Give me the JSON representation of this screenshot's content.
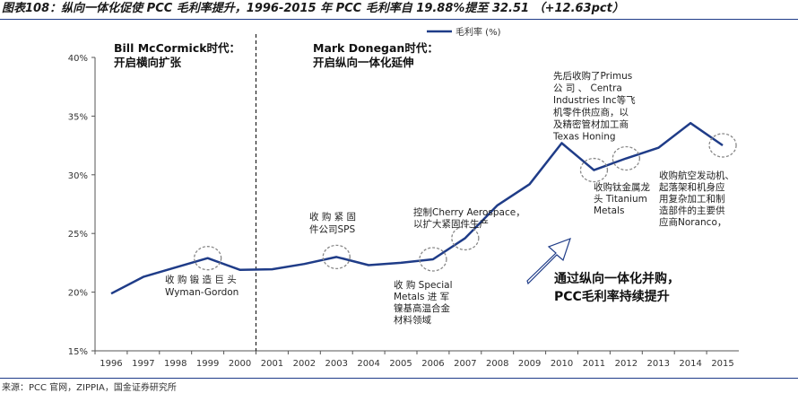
{
  "title": "图表108：纵向一体化促使 PCC 毛利率提升，1996-2015 年 PCC 毛利率自 19.88%提至 32.51 （+12.63pct）",
  "source": "来源：PCC 官网，ZIPPIA，国金证券研究所",
  "colors": {
    "line": "#1f3c88",
    "marker": "#888888",
    "arrow": "#1f3c88"
  },
  "chart_data": {
    "type": "line",
    "title": "",
    "xlabel": "",
    "ylabel": "",
    "categories": [
      "1996",
      "1997",
      "1998",
      "1999",
      "2000",
      "2001",
      "2002",
      "2003",
      "2004",
      "2005",
      "2006",
      "2007",
      "2008",
      "2009",
      "2010",
      "2011",
      "2012",
      "2013",
      "2014",
      "2015"
    ],
    "series": [
      {
        "name": "毛利率 (%)",
        "values": [
          19.88,
          21.3,
          22.1,
          22.9,
          21.9,
          21.95,
          22.4,
          23.0,
          22.3,
          22.5,
          22.8,
          24.6,
          27.4,
          29.2,
          32.7,
          30.4,
          31.4,
          32.3,
          34.4,
          32.51
        ]
      }
    ],
    "ylim": [
      15,
      40
    ],
    "yticks": [
      15,
      20,
      25,
      30,
      35,
      40
    ],
    "ytick_labels": [
      "15%",
      "20%",
      "25%",
      "30%",
      "35%",
      "40%"
    ],
    "legend": {
      "label": "毛利率 (%)",
      "position": "top-center"
    },
    "grid": false,
    "divider_after": "2000",
    "eras": [
      {
        "lines": [
          "Bill McCormick时代：",
          "开启横向扩张"
        ]
      },
      {
        "lines": [
          "Mark Donegan时代：",
          "开启纵向一体化延伸"
        ]
      }
    ],
    "highlights": [
      "1999",
      "2003",
      "2006",
      "2007",
      "2011",
      "2012",
      "2015"
    ],
    "annotations": [
      {
        "year": "1999",
        "lines": [
          "收 购 锻 造 巨 头",
          "Wyman-Gordon"
        ]
      },
      {
        "year": "2003",
        "lines": [
          "收 购 紧 固",
          "件公司SPS"
        ]
      },
      {
        "year": "2006",
        "lines": [
          "收 购 Special",
          "Metals 进 军",
          "镍基高温合金",
          "材料领域"
        ]
      },
      {
        "year": "2007",
        "lines": [
          "控制Cherry  Aerospace，",
          "以扩大紧固件生产"
        ]
      },
      {
        "year": "2010",
        "lines": [
          "先后收购了Primus",
          "公   司   、   Centra",
          "Industries  Inc等飞",
          "机零件供应商，以",
          "及精密管材加工商",
          "Texas Honing"
        ]
      },
      {
        "year": "2011",
        "lines": [
          "收购钛金属龙",
          "头  Titanium",
          "Metals"
        ]
      },
      {
        "year": "2015",
        "lines": [
          "收购航空发动机、",
          "起落架和机身应",
          "用复杂加工和制",
          "造部件的主要供",
          "应商Noranco，"
        ]
      }
    ],
    "callout": [
      "通过纵向一体化并购，",
      "PCC毛利率持续提升"
    ]
  }
}
